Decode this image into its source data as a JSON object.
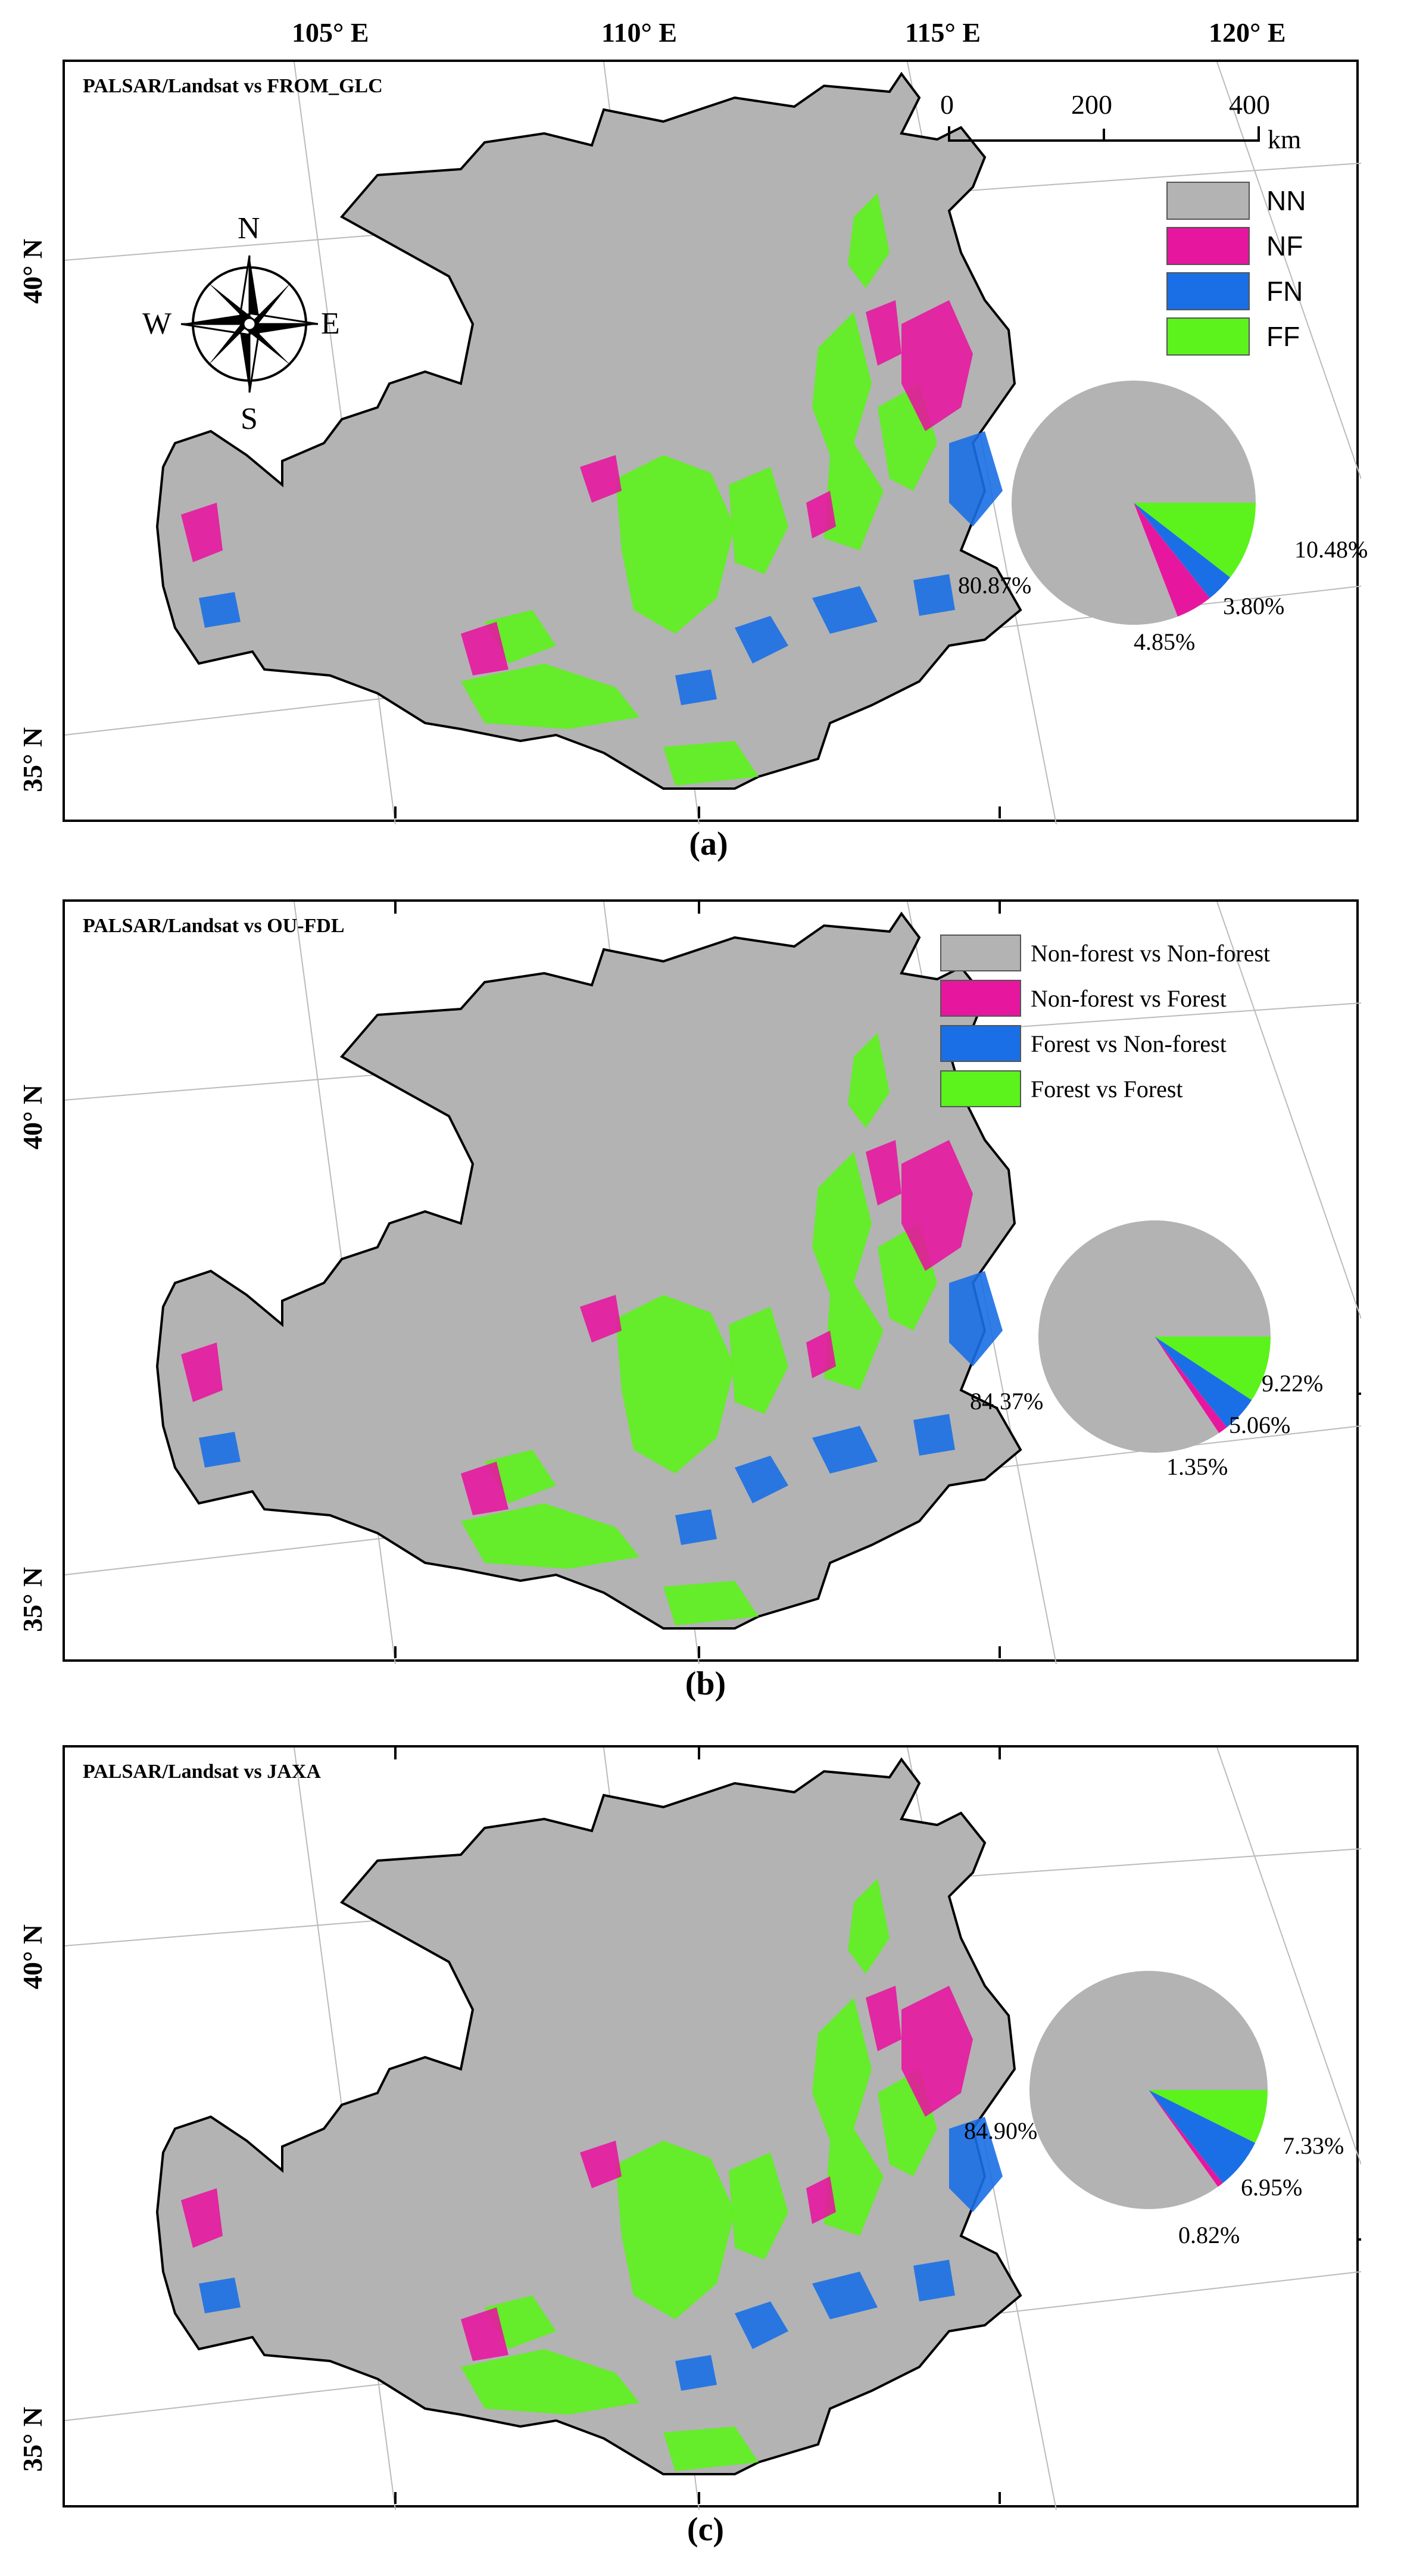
{
  "longitude_labels": [
    "105° E",
    "110° E",
    "115° E",
    "120° E"
  ],
  "latitude_labels": [
    "40° N",
    "35° N"
  ],
  "scale_bar": {
    "ticks": [
      "0",
      "200",
      "400"
    ],
    "unit": "km"
  },
  "compass": {
    "north": "N",
    "south": "S",
    "east": "E",
    "west": "W"
  },
  "colors": {
    "NN": "#b3b3b3",
    "NF": "#e6179e",
    "FN": "#1a6fe6",
    "FF": "#5cf21c",
    "background": "#ffffff"
  },
  "panels": [
    {
      "title": "PALSAR/Landsat vs FROM_GLC",
      "caption": "(a)",
      "legend": [
        {
          "code": "NN",
          "label": "NN"
        },
        {
          "code": "NF",
          "label": "NF"
        },
        {
          "code": "FN",
          "label": "FN"
        },
        {
          "code": "FF",
          "label": "FF"
        }
      ],
      "pie": [
        {
          "code": "NN",
          "value": 80.87,
          "label": "80.87%"
        },
        {
          "code": "NF",
          "value": 4.85,
          "label": "4.85%"
        },
        {
          "code": "FN",
          "value": 3.8,
          "label": "3.80%"
        },
        {
          "code": "FF",
          "value": 10.48,
          "label": "10.48%"
        }
      ]
    },
    {
      "title": "PALSAR/Landsat vs OU-FDL",
      "caption": "(b)",
      "legend": [
        {
          "code": "NN",
          "label": "Non-forest vs Non-forest"
        },
        {
          "code": "NF",
          "label": "Non-forest vs Forest"
        },
        {
          "code": "FN",
          "label": "Forest vs Non-forest"
        },
        {
          "code": "FF",
          "label": "Forest vs Forest"
        }
      ],
      "pie": [
        {
          "code": "NN",
          "value": 84.37,
          "label": "84.37%"
        },
        {
          "code": "NF",
          "value": 1.35,
          "label": "1.35%"
        },
        {
          "code": "FN",
          "value": 5.06,
          "label": "5.06%"
        },
        {
          "code": "FF",
          "value": 9.22,
          "label": "9.22%"
        }
      ]
    },
    {
      "title": "PALSAR/Landsat vs JAXA",
      "caption": "(c)",
      "legend": [],
      "pie": [
        {
          "code": "NN",
          "value": 84.9,
          "label": "84.90%"
        },
        {
          "code": "NF",
          "value": 0.82,
          "label": "0.82%"
        },
        {
          "code": "FN",
          "value": 6.95,
          "label": "6.95%"
        },
        {
          "code": "FF",
          "value": 7.33,
          "label": "7.33%"
        }
      ]
    }
  ]
}
